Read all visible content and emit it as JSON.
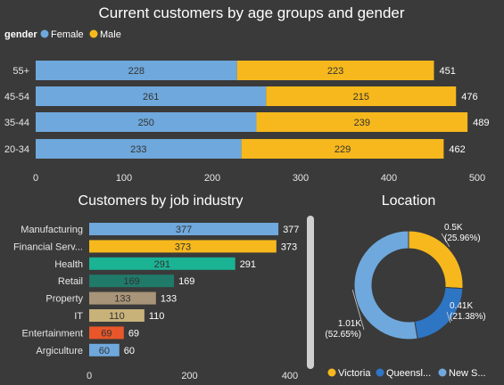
{
  "colors": {
    "background": "#3a3a3a",
    "female": "#6fa8dc",
    "male": "#f6b81c",
    "victoria": "#f6b81c",
    "queensland": "#2e75c4",
    "nsw": "#6fa8dc",
    "text": "#ffffff",
    "axis_text": "#e6e6e6",
    "bar_text": "#333333"
  },
  "age_chart": {
    "title": "Current customers by age groups and gender",
    "legend_title": "gender",
    "chart_data": {
      "type": "bar",
      "orientation": "horizontal",
      "stacked": true,
      "title": "Current customers by age groups and gender",
      "legend_title": "gender",
      "legend_position": "top-left",
      "categories": [
        "55+",
        "45-54",
        "35-44",
        "20-34"
      ],
      "series": [
        {
          "name": "Female",
          "color": "#6fa8dc",
          "values": [
            228,
            261,
            250,
            233
          ]
        },
        {
          "name": "Male",
          "color": "#f6b81c",
          "values": [
            223,
            215,
            239,
            229
          ]
        }
      ],
      "totals": [
        451,
        476,
        489,
        462
      ],
      "xlim": [
        0,
        500
      ],
      "xticks": [
        0,
        100,
        200,
        300,
        400,
        500
      ],
      "grid": false
    }
  },
  "industry_chart": {
    "title": "Customers by job industry",
    "chart_data": {
      "type": "bar",
      "orientation": "horizontal",
      "title": "Customers by job industry",
      "categories": [
        "Manufacturing",
        "Financial Serv...",
        "Health",
        "Retail",
        "Property",
        "IT",
        "Entertainment",
        "Argiculture"
      ],
      "values": [
        377,
        373,
        291,
        169,
        133,
        110,
        69,
        60
      ],
      "colors": [
        "#6fa8dc",
        "#f6b81c",
        "#1ab394",
        "#1f7a6a",
        "#a89478",
        "#c8b27a",
        "#e8562a",
        "#6fa8dc"
      ],
      "xlim": [
        0,
        400
      ],
      "xticks": [
        0,
        200,
        400
      ],
      "grid": false
    }
  },
  "location_chart": {
    "title": "Location",
    "chart_data": {
      "type": "pie",
      "donut": true,
      "title": "Location",
      "labels": [
        "Victoria",
        "Queensl...",
        "New S..."
      ],
      "values": [
        25.96,
        21.38,
        52.65
      ],
      "colors": [
        "#f6b81c",
        "#2e75c4",
        "#6fa8dc"
      ],
      "slice_labels": [
        {
          "value": "0.5K",
          "percent": "(25.96%)"
        },
        {
          "value": "0.41K",
          "percent": "(21.38%)"
        },
        {
          "value": "1.01K",
          "percent": "(52.65%)"
        }
      ],
      "legend_position": "bottom"
    }
  }
}
